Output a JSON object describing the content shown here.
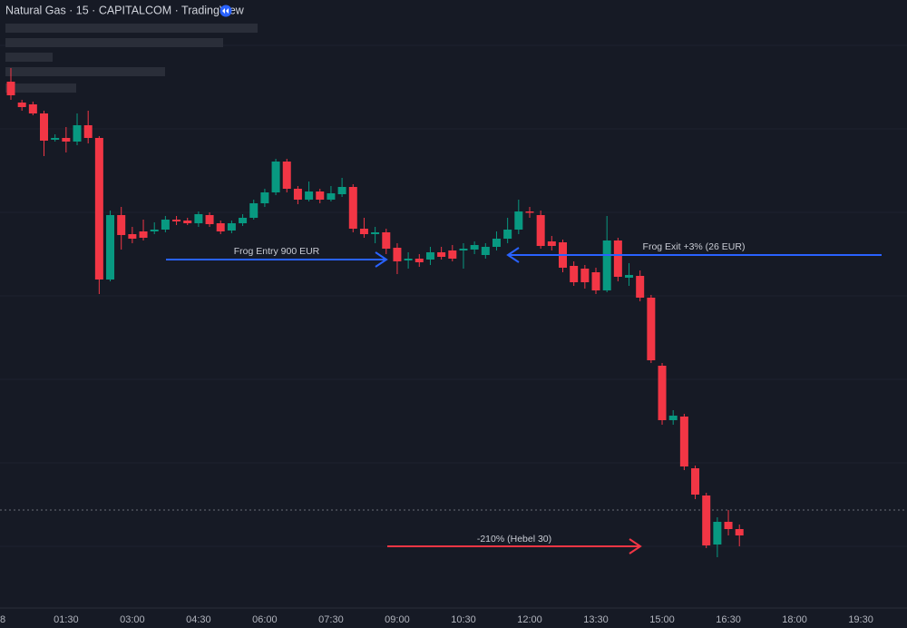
{
  "chart_data": {
    "type": "candlestick",
    "title": "Natural Gas · 15 · CAPITALCOM · TradingView",
    "partial_x_label": "8",
    "xticks": [
      "01:30",
      "03:00",
      "04:30",
      "06:00",
      "07:30",
      "09:00",
      "10:30",
      "12:00",
      "13:30",
      "15:00",
      "16:30",
      "18:00",
      "19:30"
    ],
    "ylim": [
      0,
      670
    ],
    "up_color": "#089981",
    "down_color": "#f23645",
    "open": [
      580,
      557,
      555,
      545,
      516,
      518,
      514,
      532,
      518,
      362,
      433,
      412,
      415,
      415,
      417,
      428,
      427,
      424,
      433,
      424,
      416,
      424,
      430,
      446,
      458,
      492,
      462,
      450,
      459,
      450,
      456,
      464,
      418,
      412,
      414,
      397,
      383,
      385,
      384,
      392,
      394,
      394,
      395,
      389,
      398,
      407,
      417,
      437,
      433,
      404,
      403,
      377,
      374,
      370,
      350,
      405,
      364,
      366,
      342,
      267,
      207,
      211,
      154,
      124,
      70,
      95,
      87
    ],
    "high": [
      595,
      560,
      558,
      548,
      522,
      530,
      545,
      548,
      520,
      438,
      442,
      420,
      428,
      425,
      432,
      432,
      430,
      437,
      436,
      427,
      427,
      434,
      450,
      462,
      495,
      495,
      465,
      470,
      462,
      465,
      474,
      467,
      430,
      420,
      418,
      402,
      392,
      390,
      398,
      398,
      400,
      402,
      404,
      402,
      415,
      430,
      450,
      442,
      438,
      410,
      406,
      382,
      378,
      375,
      432,
      408,
      380,
      372,
      345,
      270,
      218,
      214,
      157,
      127,
      100,
      108,
      92
    ],
    "low": [
      560,
      548,
      543,
      498,
      514,
      502,
      510,
      512,
      346,
      360,
      395,
      402,
      405,
      412,
      414,
      422,
      422,
      420,
      420,
      412,
      413,
      421,
      428,
      442,
      455,
      458,
      445,
      448,
      446,
      448,
      453,
      414,
      408,
      402,
      390,
      368,
      374,
      376,
      378,
      384,
      382,
      374,
      390,
      385,
      394,
      402,
      412,
      430,
      396,
      394,
      370,
      355,
      352,
      346,
      348,
      360,
      355,
      338,
      270,
      202,
      202,
      152,
      120,
      66,
      56,
      80,
      68
    ],
    "close": [
      565,
      552,
      545,
      515,
      518,
      514,
      532,
      518,
      362,
      433,
      411,
      407,
      408,
      417,
      428,
      426,
      424,
      434,
      423,
      415,
      424,
      430,
      446,
      458,
      492,
      462,
      450,
      459,
      450,
      457,
      464,
      418,
      412,
      414,
      396,
      382,
      385,
      381,
      392,
      387,
      385,
      396,
      400,
      398,
      407,
      417,
      437,
      436,
      399,
      399,
      375,
      359,
      359,
      350,
      405,
      365,
      367,
      342,
      273,
      207,
      212,
      156,
      125,
      69,
      95,
      87,
      80
    ],
    "annotations": [
      {
        "text": "Frog Entry 900 EUR",
        "color": "#2962ff"
      },
      {
        "text": "Frog Exit +3% (26 EUR)",
        "color": "#2962ff"
      },
      {
        "text": "-210% (Hebel 30)",
        "color": "#f23645"
      }
    ]
  }
}
